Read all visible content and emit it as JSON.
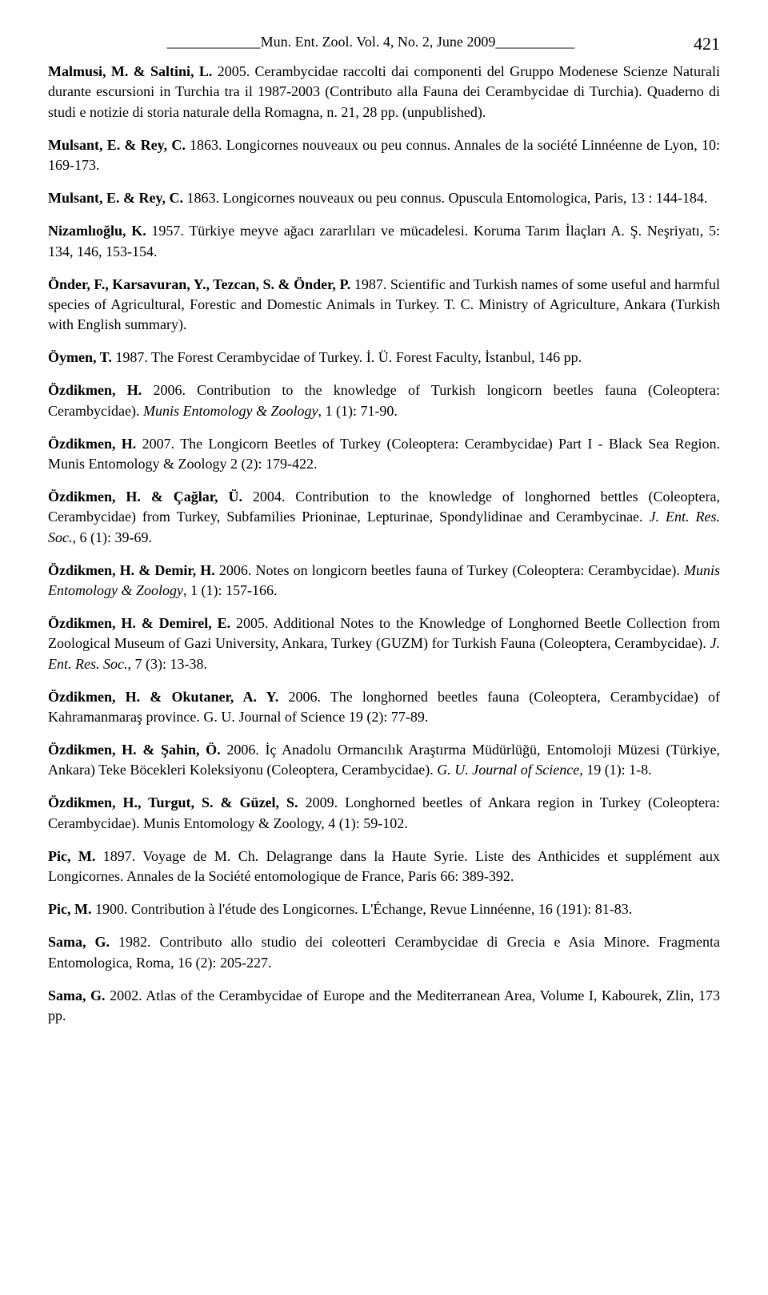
{
  "header": {
    "line_prefix": "_____________",
    "title": "Mun. Ent. Zool. Vol. 4, No. 2, June 2009",
    "line_suffix": "___________",
    "page_number": "421"
  },
  "references": [
    {
      "authors": "Malmusi, M. & Saltini, L.",
      "text": " 2005. Cerambycidae raccolti dai componenti del Gruppo Modenese Scienze Naturali durante escursioni in Turchia tra il 1987-2003 (Contributo alla Fauna dei Cerambycidae di Turchia). Quaderno di studi e notizie di storia naturale della Romagna, n. 21, 28 pp. (unpublished)."
    },
    {
      "authors": "Mulsant, E. & Rey, C.",
      "text": " 1863. Longicornes nouveaux ou peu connus. Annales de la société Linnéenne de Lyon, 10: 169-173."
    },
    {
      "authors": "Mulsant, E. & Rey, C.",
      "text": " 1863. Longicornes nouveaux ou peu connus. Opuscula Entomologica, Paris, 13 : 144-184."
    },
    {
      "authors": "Nizamlıoğlu, K.",
      "text": " 1957. Türkiye meyve ağacı zararlıları ve mücadelesi. Koruma Tarım İlaçları A. Ş. Neşriyatı, 5: 134, 146, 153-154."
    },
    {
      "authors": "Önder, F., Karsavuran, Y., Tezcan, S. & Önder, P.",
      "text": " 1987. Scientific and Turkish names of some useful and harmful species of Agricultural, Forestic and Domestic Animals in Turkey. T. C. Ministry of Agriculture, Ankara (Turkish with English summary)."
    },
    {
      "authors": "Öymen, T.",
      "text": " 1987. The Forest Cerambycidae of Turkey. İ. Ü. Forest Faculty, İstanbul, 146 pp."
    },
    {
      "authors": "Özdikmen, H.",
      "text": " 2006. Contribution to the knowledge of Turkish longicorn beetles fauna (Coleoptera: Cerambycidae). ",
      "italic": "Munis Entomology & Zoology",
      "after": ", 1 (1): 71-90."
    },
    {
      "authors": "Özdikmen, H.",
      "text": " 2007. The Longicorn Beetles of Turkey (Coleoptera: Cerambycidae) Part I - Black Sea Region. Munis Entomology & Zoology 2 (2): 179-422."
    },
    {
      "authors": "Özdikmen, H. & Çağlar, Ü.",
      "text": " 2004. Contribution to the knowledge of longhorned bettles (Coleoptera, Cerambycidae) from Turkey, Subfamilies Prioninae, Lepturinae, Spondylidinae and Cerambycinae. ",
      "italic": "J. Ent. Res. Soc.,",
      "after": " 6 (1): 39-69."
    },
    {
      "authors": "Özdikmen, H. & Demir, H.",
      "text": " 2006. Notes on longicorn beetles fauna of Turkey (Coleoptera: Cerambycidae). ",
      "italic": "Munis Entomology & Zoology",
      "after": ", 1 (1): 157-166."
    },
    {
      "authors": "Özdikmen, H. & Demirel, E.",
      "text": " 2005. Additional Notes to the Knowledge of Longhorned Beetle Collection from Zoological Museum of Gazi University, Ankara, Turkey (GUZM) for Turkish Fauna (Coleoptera, Cerambycidae). ",
      "italic": "J. Ent. Res. Soc.",
      "after": ", 7 (3): 13-38."
    },
    {
      "authors": "Özdikmen, H. & Okutaner, A. Y.",
      "text": " 2006. The longhorned beetles fauna (Coleoptera, Cerambycidae) of Kahramanmaraş province. G. U. Journal of Science 19 (2): 77-89."
    },
    {
      "authors": "Özdikmen, H. & Şahin, Ö.",
      "text": " 2006. İç Anadolu Ormancılık Araştırma Müdürlüğü, Entomoloji Müzesi (Türkiye, Ankara) Teke Böcekleri Koleksiyonu (Coleoptera, Cerambycidae). ",
      "italic": "G. U. Journal of Science",
      "after": ", 19 (1): 1-8."
    },
    {
      "authors": "Özdikmen, H., Turgut, S. & Güzel, S.",
      "text": " 2009. Longhorned beetles of Ankara region in Turkey (Coleoptera: Cerambycidae). Munis Entomology & Zoology, 4 (1): 59-102."
    },
    {
      "authors": "Pic, M.",
      "text": " 1897. Voyage de M. Ch. Delagrange dans la Haute Syrie. Liste des Anthicides et supplément aux Longicornes. Annales de la Société entomologique de France, Paris 66: 389-392."
    },
    {
      "authors": "Pic, M.",
      "text": " 1900. Contribution à l'étude des Longicornes. L'Échange, Revue Linnéenne, 16 (191): 81-83."
    },
    {
      "authors": "Sama, G.",
      "text": " 1982. Contributo allo studio dei coleotteri Cerambycidae di Grecia e Asia Minore. Fragmenta Entomologica, Roma, 16 (2): 205-227."
    },
    {
      "authors": "Sama, G.",
      "text": " 2002. Atlas of the Cerambycidae of Europe and the Mediterranean Area, Volume I, Kabourek, Zlin, 173 pp."
    }
  ]
}
